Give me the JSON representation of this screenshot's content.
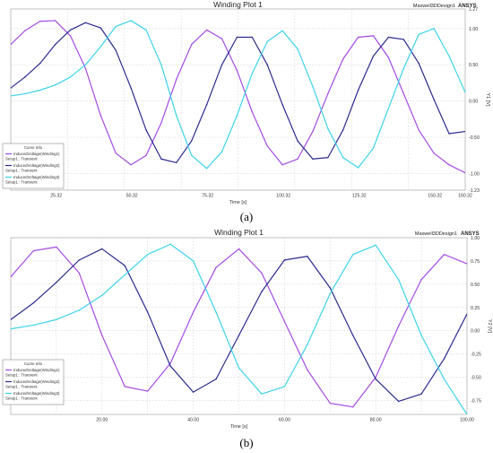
{
  "chart_data": [
    {
      "panel_label": "(a)",
      "type": "line",
      "title": "Winding Plot 1",
      "brand": "Maxwell3DDesign1",
      "logo": "ANSYS",
      "xlabel": "Time [s]",
      "ylabel": "Y1 [V]",
      "xlim": [
        10.32,
        160.32
      ],
      "ylim": [
        -1.23,
        1.27
      ],
      "xticks": [
        25.32,
        50.32,
        75.32,
        100.32,
        125.32,
        150.32,
        160.32
      ],
      "xtick_labels": [
        "25.32",
        "50.32",
        "75.32",
        "100.32",
        "125.32",
        "150.32",
        "160.32"
      ],
      "yticks": [
        1.27,
        1.0,
        0.5,
        0.0,
        -0.5,
        -1.0,
        -1.23
      ],
      "ytick_labels": [
        "1.27",
        "1.00",
        "0.50",
        "0.00",
        "-0.50",
        "-1.00",
        "-1.23"
      ],
      "grid": true,
      "legend_position": "bottom-left",
      "legend_title": "Curve Info",
      "series": [
        {
          "name": "InducedVoltage(Winding1)",
          "sub": "Setup1 : Transient",
          "color": "#a44be0",
          "x": [
            10.32,
            15,
            20,
            25,
            30,
            35,
            40,
            45,
            50,
            55,
            60,
            65,
            70,
            75,
            80,
            85,
            90,
            95,
            100,
            105,
            110,
            115,
            120,
            125,
            130,
            135,
            140,
            145,
            150,
            155,
            160.32
          ],
          "y": [
            0.78,
            0.97,
            1.1,
            1.11,
            0.9,
            0.45,
            -0.2,
            -0.72,
            -0.88,
            -0.75,
            -0.3,
            0.3,
            0.78,
            0.98,
            0.86,
            0.42,
            -0.15,
            -0.62,
            -0.88,
            -0.8,
            -0.42,
            0.1,
            0.58,
            0.88,
            0.9,
            0.6,
            0.1,
            -0.4,
            -0.72,
            -0.88,
            -0.99
          ]
        },
        {
          "name": "InducedVoltage(Winding2)",
          "sub": "Setup1 : Transient",
          "color": "#2a2a8e",
          "x": [
            10.32,
            15,
            20,
            25,
            30,
            35,
            40,
            45,
            50,
            55,
            60,
            65,
            70,
            75,
            80,
            85,
            90,
            95,
            100,
            105,
            110,
            115,
            120,
            125,
            130,
            135,
            140,
            145,
            150,
            155,
            160.32
          ],
          "y": [
            0.18,
            0.33,
            0.52,
            0.78,
            0.98,
            1.08,
            1.01,
            0.7,
            0.18,
            -0.4,
            -0.8,
            -0.85,
            -0.55,
            -0.05,
            0.5,
            0.88,
            0.88,
            0.5,
            -0.05,
            -0.55,
            -0.8,
            -0.78,
            -0.4,
            0.15,
            0.62,
            0.88,
            0.85,
            0.52,
            0.02,
            -0.45,
            -0.42
          ]
        },
        {
          "name": "InducedVoltage(Winding3)",
          "sub": "Setup1 : Transient",
          "color": "#3bd3e8",
          "x": [
            10.32,
            15,
            20,
            25,
            30,
            35,
            40,
            45,
            50,
            55,
            60,
            65,
            70,
            75,
            80,
            85,
            90,
            95,
            100,
            105,
            110,
            115,
            120,
            125,
            130,
            135,
            140,
            145,
            150,
            155,
            160.32
          ],
          "y": [
            0.07,
            0.1,
            0.15,
            0.22,
            0.33,
            0.5,
            0.75,
            1.03,
            1.11,
            0.98,
            0.5,
            -0.2,
            -0.75,
            -0.93,
            -0.7,
            -0.2,
            0.38,
            0.82,
            0.97,
            0.72,
            0.2,
            -0.38,
            -0.78,
            -0.92,
            -0.65,
            -0.1,
            0.45,
            0.92,
            1.0,
            0.62,
            0.12
          ]
        }
      ]
    },
    {
      "panel_label": "(b)",
      "type": "line",
      "title": "Winding Plot 1",
      "brand": "Maxwell3DDesign1",
      "logo": "ANSYS",
      "xlabel": "Time [s]",
      "ylabel": "Y2 [V]",
      "xlim": [
        0.0,
        100.0
      ],
      "ylim": [
        -0.9,
        1.0
      ],
      "xticks": [
        20.0,
        40.0,
        60.0,
        80.0,
        100.0
      ],
      "xtick_labels": [
        "20.00",
        "40.00",
        "60.00",
        "80.00",
        "100.00"
      ],
      "yticks": [
        1.0,
        0.75,
        0.5,
        0.25,
        0.0,
        -0.25,
        -0.5,
        -0.75
      ],
      "ytick_labels": [
        "1.00",
        "0.75",
        "0.50",
        "0.25",
        "0.00",
        "-0.25",
        "-0.50",
        "-0.75"
      ],
      "grid": true,
      "legend_position": "bottom-left",
      "legend_title": "Curve Info",
      "series": [
        {
          "name": "InducedVoltage(Winding1)",
          "sub": "Setup1 : Transient",
          "color": "#a44be0",
          "x": [
            0,
            5,
            10,
            15,
            20,
            25,
            30,
            35,
            40,
            45,
            50,
            55,
            60,
            65,
            70,
            75,
            80,
            85,
            90,
            95,
            100
          ],
          "y": [
            0.58,
            0.86,
            0.9,
            0.62,
            -0.05,
            -0.6,
            -0.65,
            -0.35,
            0.2,
            0.68,
            0.88,
            0.62,
            0.1,
            -0.42,
            -0.78,
            -0.82,
            -0.5,
            0.05,
            0.55,
            0.82,
            0.72
          ]
        },
        {
          "name": "InducedVoltage(Winding2)",
          "sub": "Setup1 : Transient",
          "color": "#2a2a8e",
          "x": [
            0,
            5,
            10,
            15,
            20,
            25,
            30,
            35,
            40,
            45,
            50,
            55,
            60,
            65,
            70,
            75,
            80,
            85,
            90,
            95,
            100
          ],
          "y": [
            0.12,
            0.3,
            0.52,
            0.76,
            0.88,
            0.7,
            0.2,
            -0.38,
            -0.66,
            -0.52,
            -0.05,
            0.42,
            0.76,
            0.8,
            0.46,
            -0.05,
            -0.52,
            -0.76,
            -0.68,
            -0.3,
            0.18
          ]
        },
        {
          "name": "InducedVoltage(Winding3)",
          "sub": "Setup1 : Transient",
          "color": "#3bd3e8",
          "x": [
            0,
            5,
            10,
            15,
            20,
            25,
            30,
            35,
            40,
            45,
            50,
            55,
            60,
            65,
            70,
            75,
            80,
            85,
            90,
            95,
            100
          ],
          "y": [
            0.02,
            0.06,
            0.12,
            0.22,
            0.38,
            0.6,
            0.82,
            0.93,
            0.75,
            0.2,
            -0.4,
            -0.68,
            -0.6,
            -0.15,
            0.4,
            0.82,
            0.92,
            0.55,
            -0.05,
            -0.52,
            -0.9
          ]
        }
      ]
    }
  ]
}
